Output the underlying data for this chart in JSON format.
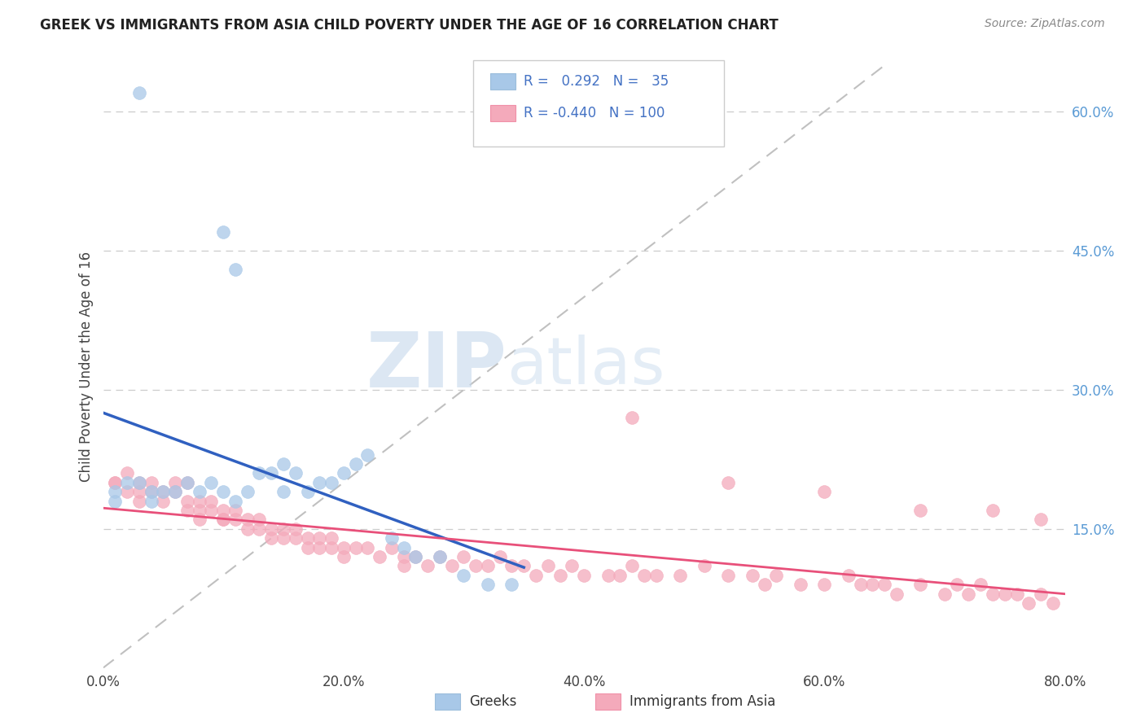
{
  "title": "GREEK VS IMMIGRANTS FROM ASIA CHILD POVERTY UNDER THE AGE OF 16 CORRELATION CHART",
  "source": "Source: ZipAtlas.com",
  "xlabel_ticks": [
    "0.0%",
    "20.0%",
    "40.0%",
    "60.0%",
    "80.0%"
  ],
  "ylabel_label": "Child Poverty Under the Age of 16",
  "right_yticks": [
    "60.0%",
    "45.0%",
    "30.0%",
    "15.0%"
  ],
  "right_ytick_values": [
    0.6,
    0.45,
    0.3,
    0.15
  ],
  "xmin": 0.0,
  "xmax": 0.8,
  "ymin": 0.0,
  "ymax": 0.65,
  "blue_color": "#A8C8E8",
  "pink_color": "#F4AABB",
  "blue_line_color": "#3060C0",
  "pink_line_color": "#E8507A",
  "diagonal_color": "#C0C0C0",
  "watermark_zip": "ZIP",
  "watermark_atlas": "atlas",
  "greeks_label": "Greeks",
  "asia_label": "Immigrants from Asia",
  "greek_x": [
    0.03,
    0.1,
    0.11,
    0.01,
    0.01,
    0.02,
    0.03,
    0.04,
    0.04,
    0.05,
    0.06,
    0.07,
    0.08,
    0.09,
    0.1,
    0.11,
    0.12,
    0.13,
    0.14,
    0.15,
    0.15,
    0.16,
    0.17,
    0.18,
    0.19,
    0.2,
    0.21,
    0.22,
    0.24,
    0.25,
    0.26,
    0.28,
    0.3,
    0.32,
    0.34
  ],
  "greek_y": [
    0.62,
    0.47,
    0.43,
    0.19,
    0.18,
    0.2,
    0.2,
    0.19,
    0.18,
    0.19,
    0.19,
    0.2,
    0.19,
    0.2,
    0.19,
    0.18,
    0.19,
    0.21,
    0.21,
    0.22,
    0.19,
    0.21,
    0.19,
    0.2,
    0.2,
    0.21,
    0.22,
    0.23,
    0.14,
    0.13,
    0.12,
    0.12,
    0.1,
    0.09,
    0.09
  ],
  "asia_x": [
    0.01,
    0.01,
    0.02,
    0.02,
    0.03,
    0.03,
    0.03,
    0.04,
    0.04,
    0.05,
    0.05,
    0.06,
    0.06,
    0.07,
    0.07,
    0.07,
    0.08,
    0.08,
    0.08,
    0.09,
    0.09,
    0.1,
    0.1,
    0.1,
    0.11,
    0.11,
    0.12,
    0.12,
    0.13,
    0.13,
    0.14,
    0.14,
    0.15,
    0.15,
    0.16,
    0.16,
    0.17,
    0.17,
    0.18,
    0.18,
    0.19,
    0.19,
    0.2,
    0.2,
    0.21,
    0.22,
    0.23,
    0.24,
    0.25,
    0.25,
    0.26,
    0.27,
    0.28,
    0.29,
    0.3,
    0.31,
    0.32,
    0.33,
    0.34,
    0.35,
    0.36,
    0.37,
    0.38,
    0.39,
    0.4,
    0.42,
    0.43,
    0.44,
    0.45,
    0.46,
    0.48,
    0.5,
    0.52,
    0.54,
    0.55,
    0.56,
    0.58,
    0.6,
    0.62,
    0.63,
    0.64,
    0.65,
    0.66,
    0.68,
    0.7,
    0.71,
    0.72,
    0.73,
    0.74,
    0.75,
    0.76,
    0.77,
    0.78,
    0.79,
    0.44,
    0.52,
    0.6,
    0.68,
    0.74,
    0.78
  ],
  "asia_y": [
    0.2,
    0.2,
    0.19,
    0.21,
    0.2,
    0.18,
    0.19,
    0.19,
    0.2,
    0.18,
    0.19,
    0.19,
    0.2,
    0.18,
    0.17,
    0.2,
    0.17,
    0.18,
    0.16,
    0.17,
    0.18,
    0.16,
    0.17,
    0.16,
    0.16,
    0.17,
    0.16,
    0.15,
    0.16,
    0.15,
    0.15,
    0.14,
    0.15,
    0.14,
    0.14,
    0.15,
    0.14,
    0.13,
    0.14,
    0.13,
    0.13,
    0.14,
    0.13,
    0.12,
    0.13,
    0.13,
    0.12,
    0.13,
    0.12,
    0.11,
    0.12,
    0.11,
    0.12,
    0.11,
    0.12,
    0.11,
    0.11,
    0.12,
    0.11,
    0.11,
    0.1,
    0.11,
    0.1,
    0.11,
    0.1,
    0.1,
    0.1,
    0.11,
    0.1,
    0.1,
    0.1,
    0.11,
    0.1,
    0.1,
    0.09,
    0.1,
    0.09,
    0.09,
    0.1,
    0.09,
    0.09,
    0.09,
    0.08,
    0.09,
    0.08,
    0.09,
    0.08,
    0.09,
    0.08,
    0.08,
    0.08,
    0.07,
    0.08,
    0.07,
    0.27,
    0.2,
    0.19,
    0.17,
    0.17,
    0.16
  ]
}
